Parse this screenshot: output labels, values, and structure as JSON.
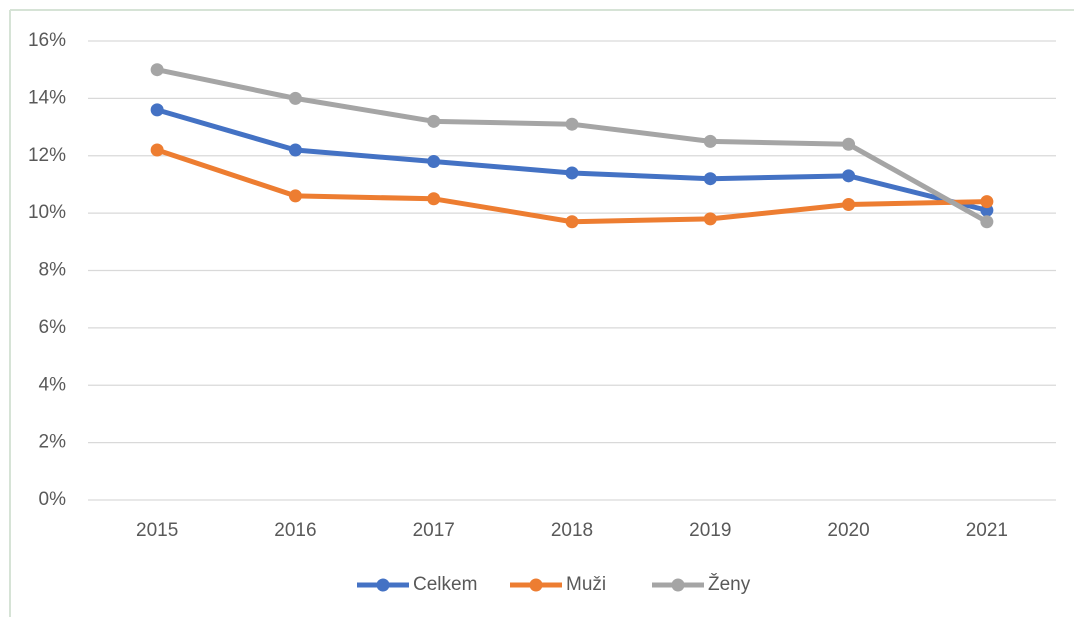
{
  "chart_data": {
    "type": "line",
    "categories": [
      "2015",
      "2016",
      "2017",
      "2018",
      "2019",
      "2020",
      "2021"
    ],
    "series": [
      {
        "name": "Celkem",
        "color": "#4472c4",
        "values": [
          13.6,
          12.2,
          11.8,
          11.4,
          11.2,
          11.3,
          10.1
        ]
      },
      {
        "name": "Muži",
        "color": "#ed7d31",
        "values": [
          12.2,
          10.6,
          10.5,
          9.7,
          9.8,
          10.3,
          10.4
        ]
      },
      {
        "name": "Ženy",
        "color": "#a5a5a5",
        "values": [
          15.0,
          14.0,
          13.2,
          13.1,
          12.5,
          12.4,
          9.7
        ]
      }
    ],
    "ylim": [
      0,
      16
    ],
    "yticks": [
      {
        "value": 0,
        "label": "0%"
      },
      {
        "value": 2,
        "label": "2%"
      },
      {
        "value": 4,
        "label": "4%"
      },
      {
        "value": 6,
        "label": "6%"
      },
      {
        "value": 8,
        "label": "8%"
      },
      {
        "value": 10,
        "label": "10%"
      },
      {
        "value": 12,
        "label": "12%"
      },
      {
        "value": 14,
        "label": "14%"
      },
      {
        "value": 16,
        "label": "16%"
      }
    ],
    "grid": true,
    "legend": "bottom"
  }
}
